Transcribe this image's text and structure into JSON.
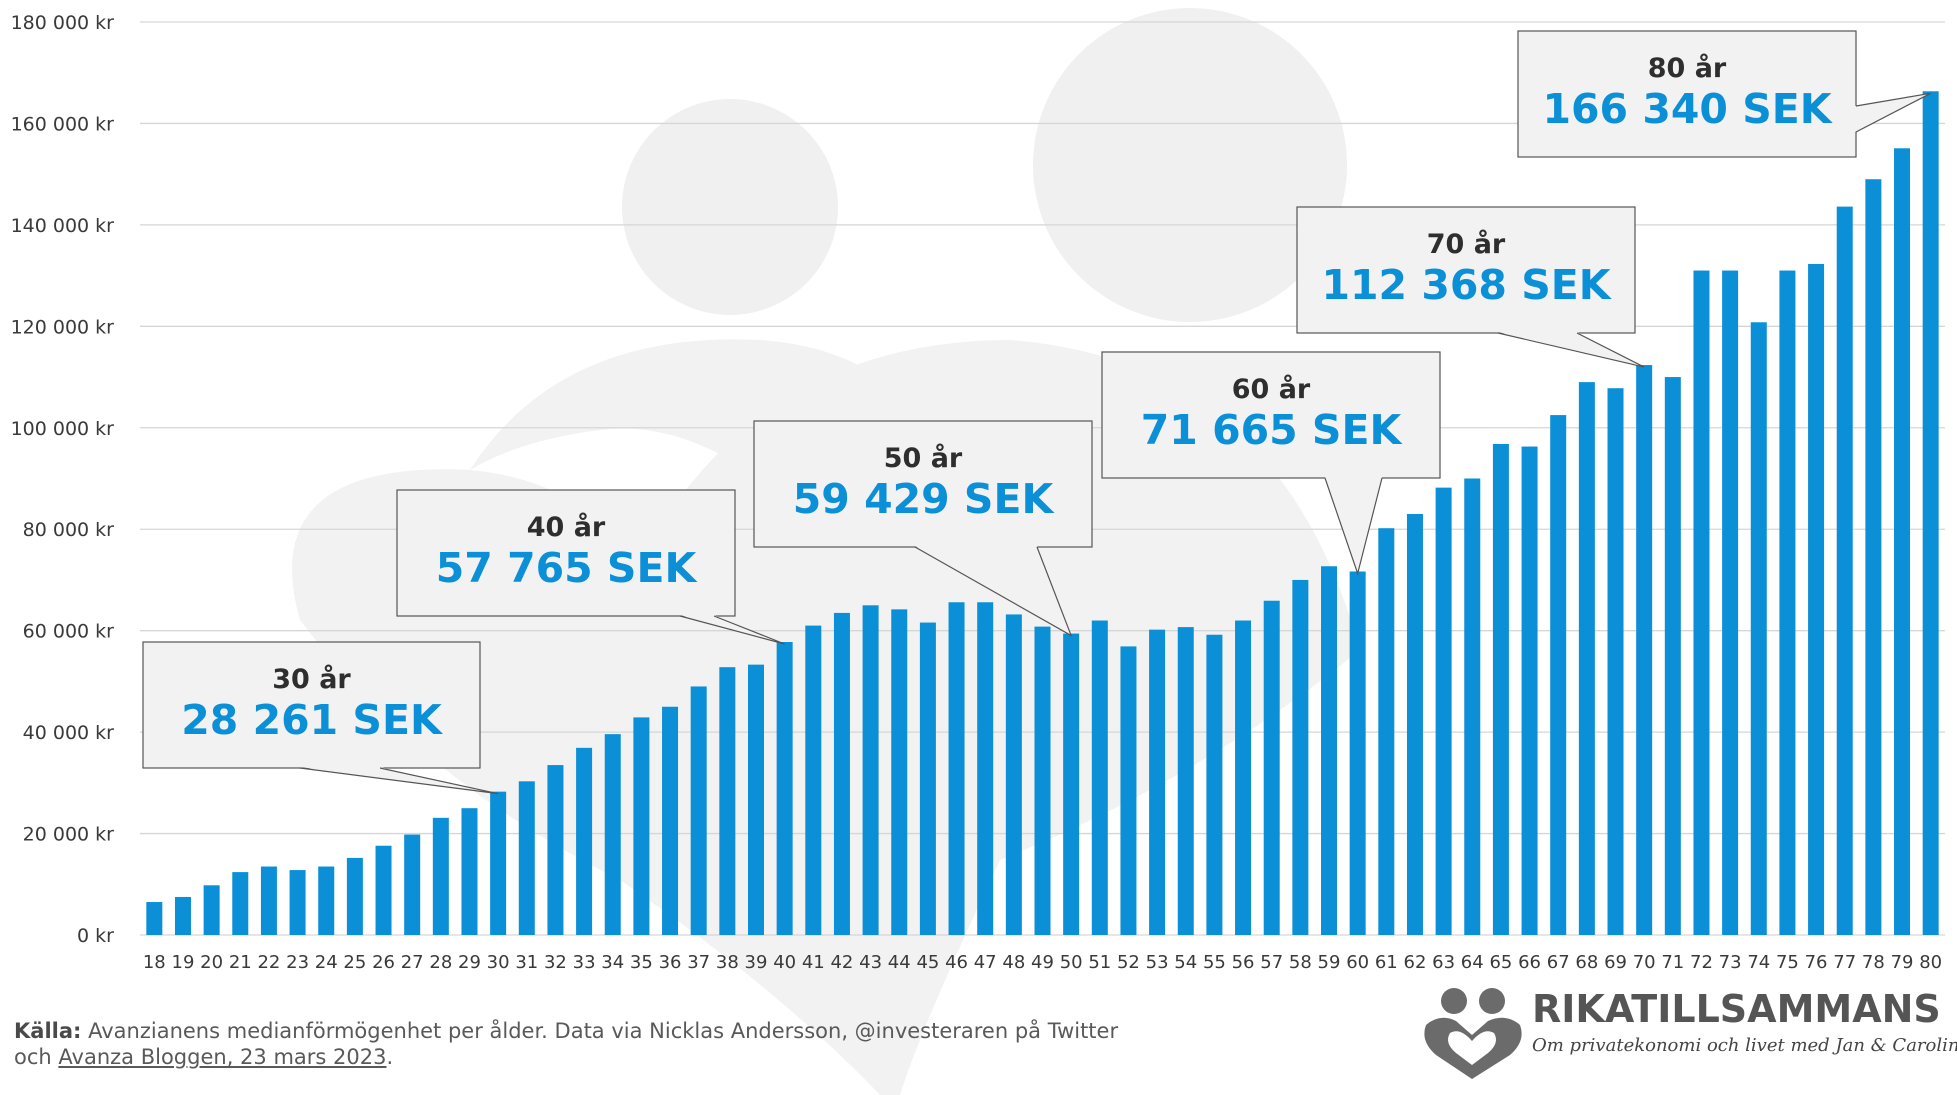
{
  "chart_data": {
    "type": "bar",
    "x": [
      18,
      19,
      20,
      21,
      22,
      23,
      24,
      25,
      26,
      27,
      28,
      29,
      30,
      31,
      32,
      33,
      34,
      35,
      36,
      37,
      38,
      39,
      40,
      41,
      42,
      43,
      44,
      45,
      46,
      47,
      48,
      49,
      50,
      51,
      52,
      53,
      54,
      55,
      56,
      57,
      58,
      59,
      60,
      61,
      62,
      63,
      64,
      65,
      66,
      67,
      68,
      69,
      70,
      71,
      72,
      73,
      74,
      75,
      76,
      77,
      78,
      79,
      80
    ],
    "values": [
      6500,
      7500,
      9800,
      12400,
      13500,
      12800,
      13500,
      15200,
      17600,
      19800,
      23100,
      25000,
      28261,
      30300,
      33500,
      36900,
      39600,
      42900,
      45000,
      49000,
      52800,
      53300,
      57765,
      61000,
      63500,
      65000,
      64200,
      61600,
      65600,
      65600,
      63200,
      60800,
      59429,
      62000,
      56900,
      60200,
      60700,
      59200,
      62000,
      65900,
      70000,
      72700,
      71665,
      80200,
      83000,
      88200,
      90000,
      96800,
      96300,
      102500,
      109000,
      107800,
      112368,
      110000,
      131000,
      131000,
      120800,
      131000,
      132300,
      143600,
      149000,
      155100,
      166340
    ],
    "ylim": [
      0,
      180000
    ],
    "yticks": [
      0,
      20000,
      40000,
      60000,
      80000,
      100000,
      120000,
      140000,
      160000,
      180000
    ],
    "ytick_labels": [
      "0 kr",
      "20 000 kr",
      "40 000 kr",
      "60 000 kr",
      "80 000 kr",
      "100 000 kr",
      "120 000 kr",
      "140 000 kr",
      "160 000 kr",
      "180 000 kr"
    ],
    "grid": true,
    "annotations": [
      {
        "x": 30,
        "label": "30 år",
        "value": "28 261 SEK"
      },
      {
        "x": 40,
        "label": "40 år",
        "value": "57 765 SEK"
      },
      {
        "x": 50,
        "label": "50 år",
        "value": "59 429 SEK"
      },
      {
        "x": 60,
        "label": "60 år",
        "value": "71 665 SEK"
      },
      {
        "x": 70,
        "label": "70 år",
        "value": "112 368 SEK"
      },
      {
        "x": 80,
        "label": "80 år",
        "value": "166 340 SEK"
      }
    ]
  },
  "colors": {
    "bar": "#0b8fd6",
    "value_text": "#0b8fd6",
    "grid": "#d6d6d6",
    "callout_fill": "#f2f2f2",
    "callout_stroke": "#555555",
    "watermark": "#f0f0f0"
  },
  "source": {
    "label": "Källa:",
    "text": "Avanzianens medianförmögenhet per ålder. Data via Nicklas Andersson, @investeraren på Twitter",
    "line2_prefix": "och",
    "link": "Avanza Bloggen, 23 mars 2023",
    "line2_suffix": "."
  },
  "brand": {
    "name": "RIKATILLSAMMANS",
    "tagline": "Om privatekonomi och livet med Jan & Caroline",
    "logo_icon": "two-people-heart-icon"
  }
}
